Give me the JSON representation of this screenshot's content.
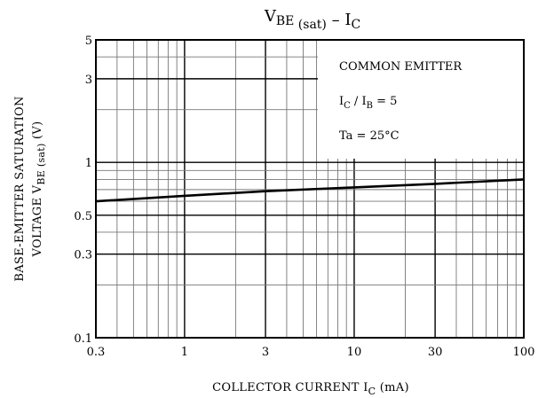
{
  "chart_data": {
    "type": "line",
    "title": {
      "parts": [
        {
          "text": "V",
          "sub": false
        },
        {
          "text": "BE",
          "sub": true
        },
        {
          "text": " (sat)",
          "sub": true
        },
        {
          "text": "  –  I",
          "sub": false
        },
        {
          "text": "C",
          "sub": true
        }
      ]
    },
    "xlabel": {
      "parts": [
        {
          "text": "COLLECTOR CURRENT   I",
          "sub": false
        },
        {
          "text": "C",
          "sub": true
        },
        {
          "text": "   (mA)",
          "sub": false
        }
      ]
    },
    "ylabel": {
      "line1": "BASE-EMITTER SATURATION",
      "line2_parts": [
        {
          "text": "VOLTAGE   V",
          "sub": false
        },
        {
          "text": "BE (sat)",
          "sub": true
        },
        {
          "text": "   (V)",
          "sub": false
        }
      ]
    },
    "x_scale": "log",
    "y_scale": "log",
    "xlim": [
      0.3,
      100
    ],
    "ylim": [
      0.1,
      5
    ],
    "x_ticks": [
      {
        "value": 0.3,
        "label": "0.3"
      },
      {
        "value": 1,
        "label": "1"
      },
      {
        "value": 3,
        "label": "3"
      },
      {
        "value": 10,
        "label": "10"
      },
      {
        "value": 30,
        "label": "30"
      },
      {
        "value": 100,
        "label": "100"
      }
    ],
    "y_ticks": [
      {
        "value": 0.1,
        "label": "0.1"
      },
      {
        "value": 0.3,
        "label": "0.3"
      },
      {
        "value": 0.5,
        "label": "0.5"
      },
      {
        "value": 1,
        "label": "1"
      },
      {
        "value": 3,
        "label": "3"
      },
      {
        "value": 5,
        "label": "5"
      }
    ],
    "grid": true,
    "series": [
      {
        "x": [
          0.3,
          1,
          3,
          10,
          30,
          100
        ],
        "y": [
          0.6,
          0.645,
          0.685,
          0.72,
          0.755,
          0.8
        ],
        "color": "#000000"
      }
    ],
    "annotations": [
      {
        "parts": [
          {
            "text": "COMMON EMITTER",
            "sub": false
          }
        ]
      },
      {
        "parts": [
          {
            "text": "I",
            "sub": false
          },
          {
            "text": "C",
            "sub": true
          },
          {
            "text": " / I",
            "sub": false
          },
          {
            "text": "B",
            "sub": true
          },
          {
            "text": " = 5",
            "sub": false
          }
        ]
      },
      {
        "parts": [
          {
            "text": "Ta = 25°C",
            "sub": false
          }
        ]
      }
    ]
  }
}
